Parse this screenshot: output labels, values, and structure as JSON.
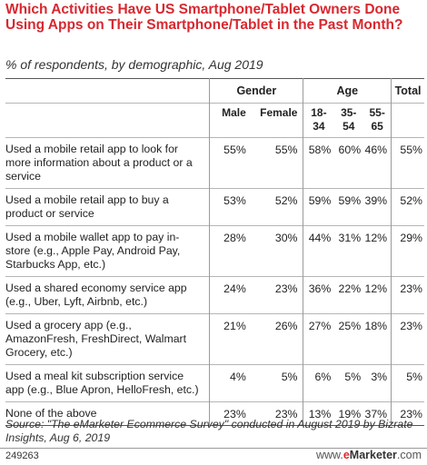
{
  "title": "Which Activities Have US Smartphone/Tablet Owners Done Using Apps on Their Smartphone/Tablet in the Past Month?",
  "subtitle": "% of respondents, by demographic, Aug 2019",
  "chart_data": {
    "type": "table",
    "column_groups": [
      {
        "label": "Gender",
        "columns": [
          "Male",
          "Female"
        ]
      },
      {
        "label": "Age",
        "columns": [
          "18-34",
          "35-54",
          "55-65"
        ]
      },
      {
        "label": "Total",
        "columns": [
          ""
        ]
      }
    ],
    "headers": {
      "gender": "Gender",
      "age": "Age",
      "total": "Total",
      "male": "Male",
      "female": "Female",
      "age1": "18-34",
      "age2": "35-54",
      "age3": "55-65"
    },
    "rows": [
      {
        "label": "Used a mobile retail app to look for more information about a product or a service",
        "values": [
          "55%",
          "55%",
          "58%",
          "60%",
          "46%",
          "55%"
        ]
      },
      {
        "label": "Used a mobile retail app to buy a product or service",
        "values": [
          "53%",
          "52%",
          "59%",
          "59%",
          "39%",
          "52%"
        ]
      },
      {
        "label": "Used a mobile wallet app to pay in-store (e.g., Apple Pay, Android Pay, Starbucks App, etc.)",
        "values": [
          "28%",
          "30%",
          "44%",
          "31%",
          "12%",
          "29%"
        ]
      },
      {
        "label": "Used a shared economy service app (e.g., Uber, Lyft, Airbnb, etc.)",
        "values": [
          "24%",
          "23%",
          "36%",
          "22%",
          "12%",
          "23%"
        ]
      },
      {
        "label": "Used a grocery app (e.g., AmazonFresh, FreshDirect, Walmart Grocery, etc.)",
        "values": [
          "21%",
          "26%",
          "27%",
          "25%",
          "18%",
          "23%"
        ]
      },
      {
        "label": "Used a meal kit subscription service app (e.g., Blue Apron, HelloFresh, etc.)",
        "values": [
          "4%",
          "5%",
          "6%",
          "5%",
          "3%",
          "5%"
        ]
      },
      {
        "label": "None of the above",
        "values": [
          "23%",
          "23%",
          "13%",
          "19%",
          "37%",
          "23%"
        ]
      }
    ]
  },
  "footer": {
    "source": "Source: \"The eMarketer Ecommerce Survey\" conducted in August 2019 by Bizrate Insights, Aug 6, 2019",
    "chart_id": "249263",
    "brand_prefix": "www.",
    "brand_e": "e",
    "brand_rest": "Marketer",
    "brand_suffix": ".com",
    "brand_color": "#d7282f"
  },
  "colors": {
    "title": "#d7282f"
  }
}
